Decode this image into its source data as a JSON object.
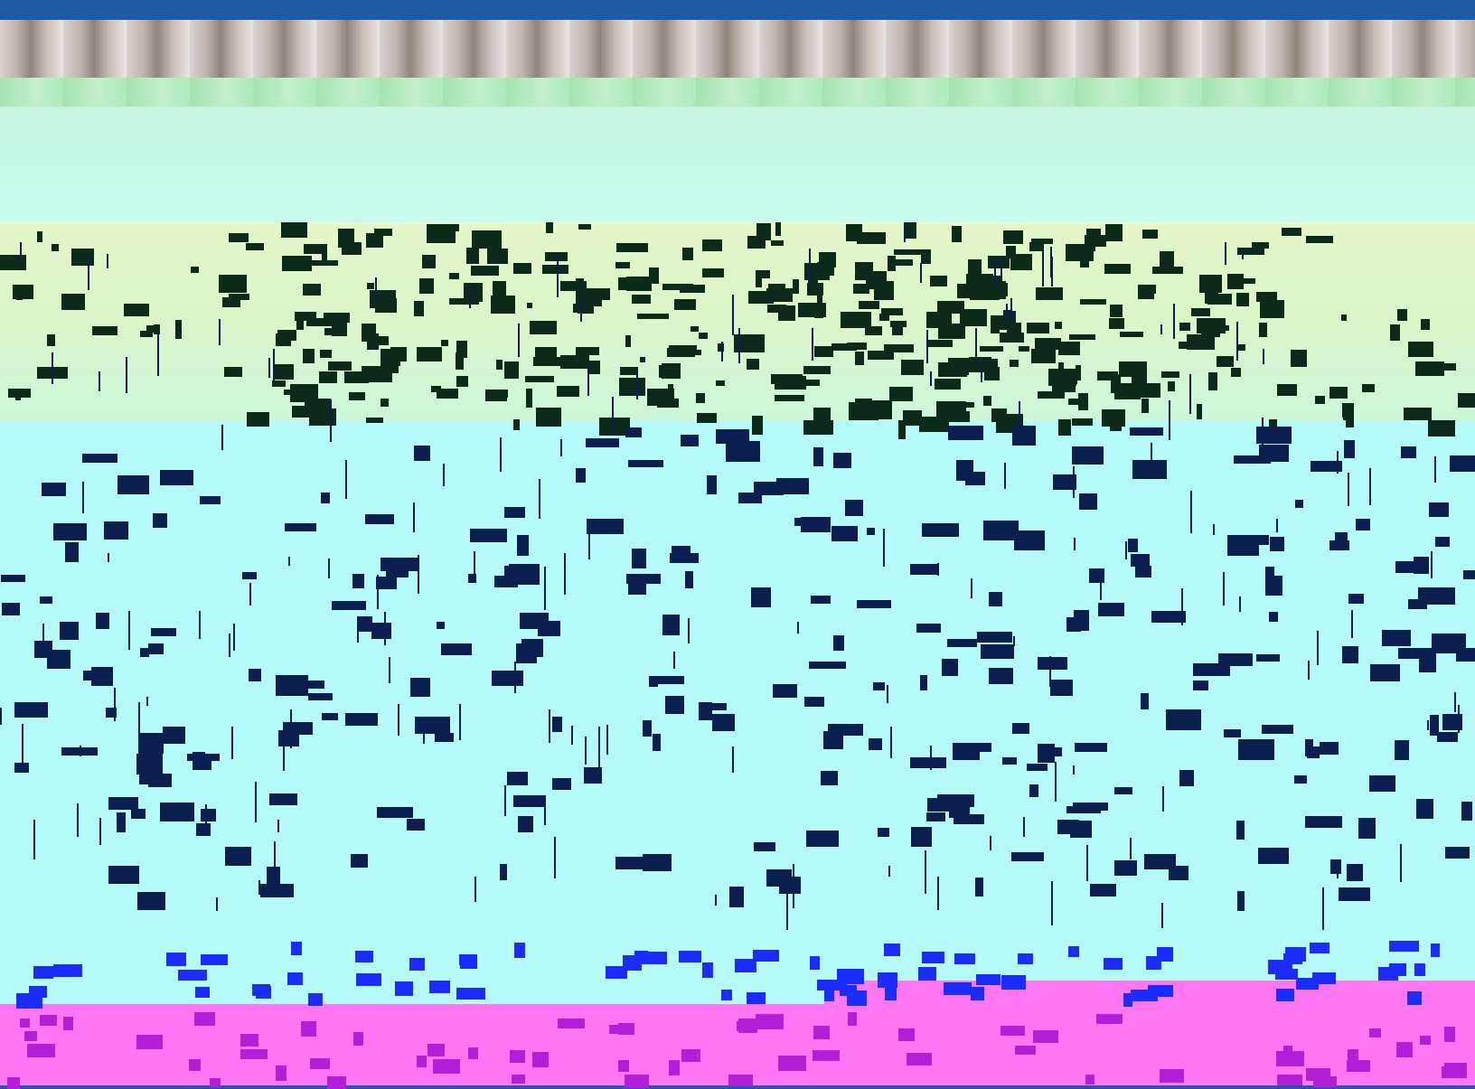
{
  "title": "",
  "colors": {
    "frame_bar": "#1f5aa6",
    "dark_glitch": "#0b2a1a",
    "navy_glitch": "#0a1e4f",
    "blue_glitch": "#1b2cff",
    "magenta_band": "#ff77f2",
    "cyan_band": "#b6fbfb",
    "yellow_band": "#e6f7c9"
  },
  "regions": [
    {
      "name": "top-bar"
    },
    {
      "name": "curtain-strip"
    },
    {
      "name": "sky"
    },
    {
      "name": "yellow-band"
    },
    {
      "name": "cyan-band"
    },
    {
      "name": "magenta-band"
    }
  ]
}
